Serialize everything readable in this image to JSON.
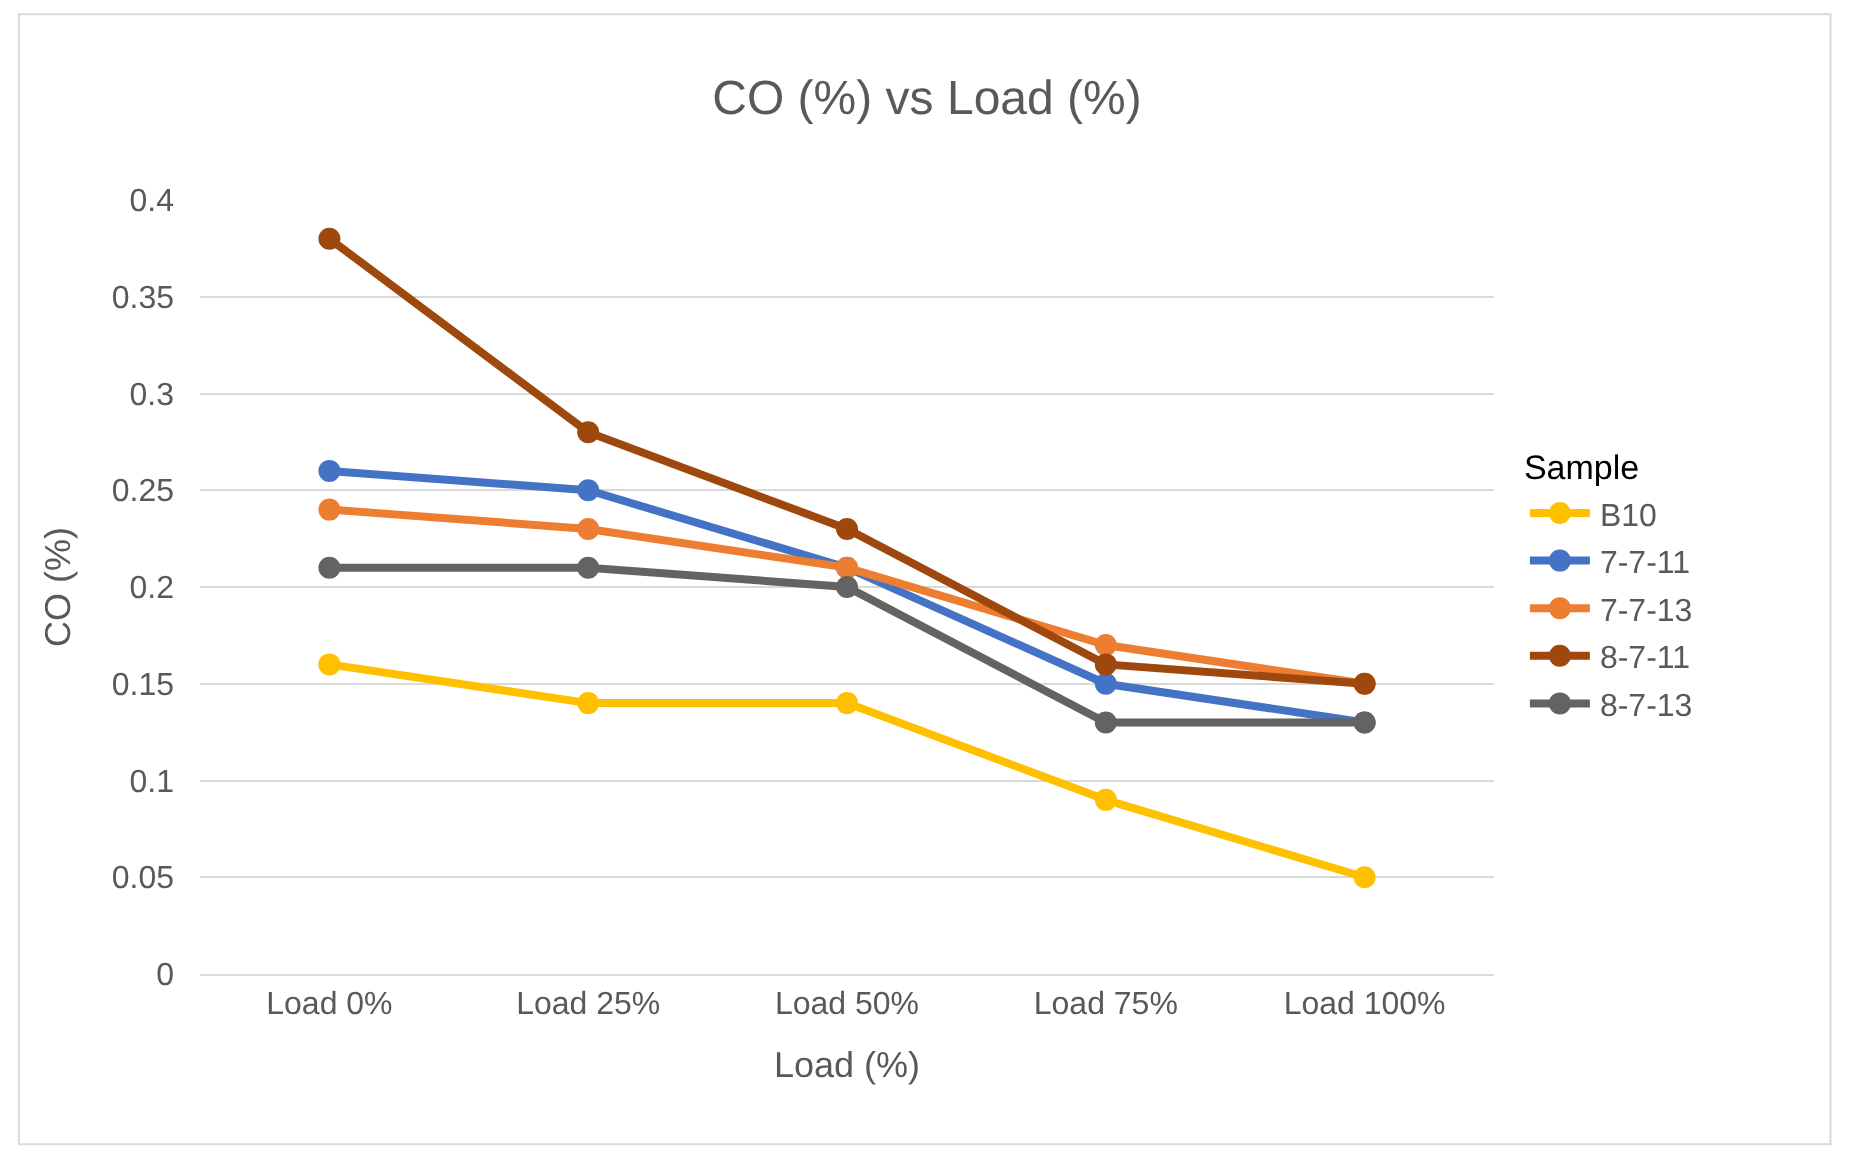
{
  "chart_data": {
    "type": "line",
    "title": "CO (%) vs Load (%)",
    "xlabel": "Load (%)",
    "ylabel": "CO (%)",
    "legend_title": "Sample",
    "categories": [
      "Load 0%",
      "Load 25%",
      "Load 50%",
      "Load 75%",
      "Load 100%"
    ],
    "series": [
      {
        "name": "B10",
        "color": "#ffc000",
        "values": [
          0.16,
          0.14,
          0.14,
          0.09,
          0.05
        ]
      },
      {
        "name": "7-7-11",
        "color": "#4472c4",
        "values": [
          0.26,
          0.25,
          0.21,
          0.15,
          0.13
        ]
      },
      {
        "name": "7-7-13",
        "color": "#ed7d31",
        "values": [
          0.24,
          0.23,
          0.21,
          0.17,
          0.15
        ]
      },
      {
        "name": "8-7-11",
        "color": "#9e480e",
        "values": [
          0.38,
          0.28,
          0.23,
          0.16,
          0.15
        ]
      },
      {
        "name": "8-7-13",
        "color": "#636363",
        "values": [
          0.21,
          0.21,
          0.2,
          0.13,
          0.13
        ]
      }
    ],
    "ylim": [
      0,
      0.4
    ],
    "yticks": [
      0,
      0.05,
      0.1,
      0.15,
      0.2,
      0.25,
      0.3,
      0.35,
      0.4
    ],
    "grid": "y",
    "legend": "right",
    "marker": "circle",
    "line_style": "solid"
  }
}
